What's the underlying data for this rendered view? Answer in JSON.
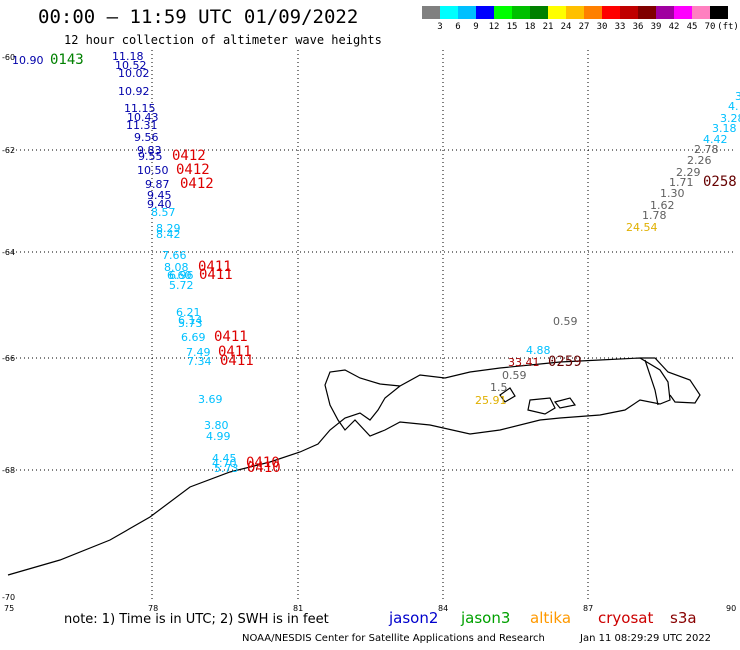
{
  "header": {
    "title": "00:00 – 11:59 UTC 01/09/2022",
    "subtitle": "12 hour collection of altimeter wave heights"
  },
  "colorbar": {
    "unit": "(ft)",
    "colors": [
      "#808080",
      "#00ffff",
      "#00c0ff",
      "#0000ff",
      "#00ff00",
      "#00c000",
      "#008000",
      "#ffff00",
      "#ffc000",
      "#ff8000",
      "#ff0000",
      "#c00000",
      "#800000",
      "#a000a0",
      "#ff00ff",
      "#ff80c0",
      "#000000"
    ],
    "labels": [
      "3",
      "6",
      "9",
      "12",
      "15",
      "18",
      "21",
      "24",
      "27",
      "30",
      "33",
      "36",
      "39",
      "42",
      "45",
      "70"
    ]
  },
  "axes": {
    "x_ticks": [
      "75",
      "78",
      "81",
      "84",
      "87",
      "90"
    ],
    "y_ticks": [
      "-60",
      "-62",
      "-64",
      "-66",
      "-68",
      "-70"
    ]
  },
  "observations": [
    {
      "text": "10.90",
      "color": "#0000aa"
    },
    {
      "text": "0143",
      "color": "#008000"
    },
    {
      "text": "11.18",
      "color": "#0000aa"
    },
    {
      "text": "10.52",
      "color": "#0000aa"
    },
    {
      "text": "10.02",
      "color": "#0000aa"
    },
    {
      "text": "10.92",
      "color": "#0000aa"
    },
    {
      "text": "11.15",
      "color": "#0000aa"
    },
    {
      "text": "10.43",
      "color": "#0000aa"
    },
    {
      "text": "11.31",
      "color": "#0000aa"
    },
    {
      "text": "9.56",
      "color": "#0000aa"
    },
    {
      "text": "9.83",
      "color": "#0000aa"
    },
    {
      "text": "9.55",
      "color": "#0000aa"
    },
    {
      "text": "0412",
      "color": "#dd0000"
    },
    {
      "text": "10.50",
      "color": "#0000aa"
    },
    {
      "text": "0412",
      "color": "#dd0000"
    },
    {
      "text": "9.87",
      "color": "#0000aa"
    },
    {
      "text": "0412",
      "color": "#dd0000"
    },
    {
      "text": "9.45",
      "color": "#0000aa"
    },
    {
      "text": "9.40",
      "color": "#0000aa"
    },
    {
      "text": "8.57",
      "color": "#00c0ff"
    },
    {
      "text": "8.29",
      "color": "#00c0ff"
    },
    {
      "text": "8.42",
      "color": "#00c0ff"
    },
    {
      "text": "7.66",
      "color": "#00c0ff"
    },
    {
      "text": "8.08",
      "color": "#00c0ff"
    },
    {
      "text": "0411",
      "color": "#dd0000"
    },
    {
      "text": "6.60",
      "color": "#00c0ff"
    },
    {
      "text": "6.96",
      "color": "#00c0ff"
    },
    {
      "text": "0411",
      "color": "#dd0000"
    },
    {
      "text": "5.72",
      "color": "#00c0ff"
    },
    {
      "text": "6.21",
      "color": "#00c0ff"
    },
    {
      "text": "6.14",
      "color": "#00c0ff"
    },
    {
      "text": "5.73",
      "color": "#00c0ff"
    },
    {
      "text": "6.69",
      "color": "#00c0ff"
    },
    {
      "text": "0411",
      "color": "#dd0000"
    },
    {
      "text": "7.49",
      "color": "#00c0ff"
    },
    {
      "text": "0411",
      "color": "#dd0000"
    },
    {
      "text": "7.34",
      "color": "#00c0ff"
    },
    {
      "text": "0411",
      "color": "#dd0000"
    },
    {
      "text": "3.69",
      "color": "#00c0ff"
    },
    {
      "text": "3.80",
      "color": "#00c0ff"
    },
    {
      "text": "4.99",
      "color": "#00c0ff"
    },
    {
      "text": "4.45",
      "color": "#00c0ff"
    },
    {
      "text": "4.70",
      "color": "#00c0ff"
    },
    {
      "text": "0410",
      "color": "#dd0000"
    },
    {
      "text": "5.73",
      "color": "#00c0ff"
    },
    {
      "text": "0410",
      "color": "#dd0000"
    },
    {
      "text": "0.59",
      "color": "#606060"
    },
    {
      "text": "4.88",
      "color": "#00c0ff"
    },
    {
      "text": "33.41",
      "color": "#aa0000"
    },
    {
      "text": "0259",
      "color": "#660000"
    },
    {
      "text": "0.59",
      "color": "#606060"
    },
    {
      "text": "1.5",
      "color": "#606060"
    },
    {
      "text": "25.91",
      "color": "#e0b000"
    },
    {
      "text": "3",
      "color": "#00c0ff"
    },
    {
      "text": "4.",
      "color": "#00c0ff"
    },
    {
      "text": "3.28",
      "color": "#00c0ff"
    },
    {
      "text": "3.18",
      "color": "#00c0ff"
    },
    {
      "text": "4.42",
      "color": "#00c0ff"
    },
    {
      "text": "2.78",
      "color": "#606060"
    },
    {
      "text": "2.26",
      "color": "#606060"
    },
    {
      "text": "2.29",
      "color": "#606060"
    },
    {
      "text": "1.71",
      "color": "#606060"
    },
    {
      "text": "0258",
      "color": "#660000"
    },
    {
      "text": "1.30",
      "color": "#606060"
    },
    {
      "text": "1.62",
      "color": "#606060"
    },
    {
      "text": "1.78",
      "color": "#606060"
    },
    {
      "text": "24.54",
      "color": "#e0b000"
    }
  ],
  "note": "note: 1) Time is in UTC; 2) SWH is in feet",
  "legend": [
    {
      "name": "jason2",
      "color": "#0000cc"
    },
    {
      "name": "jason3",
      "color": "#00a000"
    },
    {
      "name": "altika",
      "color": "#ff9900"
    },
    {
      "name": "cryosat",
      "color": "#cc0000"
    },
    {
      "name": "s3a",
      "color": "#880000"
    }
  ],
  "footer": {
    "credit": "NOAA/NESDIS Center for Satellite Applications and Research",
    "timestamp": "Jan 11 08:29:29 UTC 2022"
  }
}
